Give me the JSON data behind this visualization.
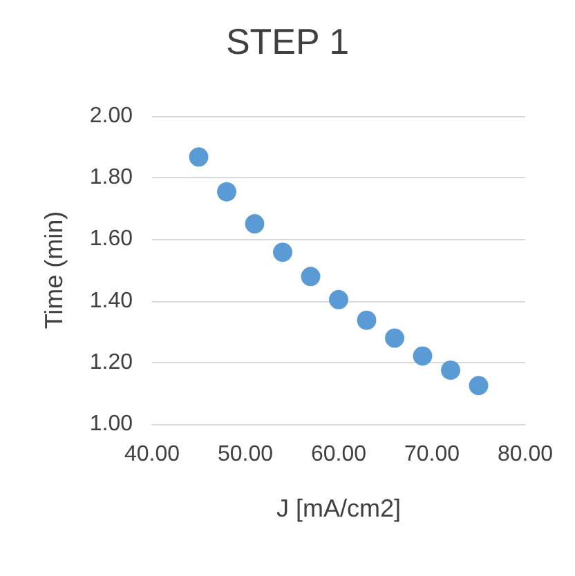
{
  "chart_data": {
    "type": "scatter",
    "title": "STEP 1",
    "xlabel": "J [mA/cm2]",
    "ylabel": "Time (min)",
    "x": [
      45,
      48,
      51,
      54,
      57,
      60,
      63,
      66,
      69,
      72,
      75
    ],
    "series": [
      {
        "color": "#5b9bd5",
        "values": [
          1.867,
          1.754,
          1.65,
          1.558,
          1.479,
          1.404,
          1.337,
          1.279,
          1.221,
          1.175,
          1.125
        ]
      }
    ],
    "xlim": [
      40,
      80
    ],
    "xticks": [
      {
        "value": 40,
        "label": "40.00"
      },
      {
        "value": 50,
        "label": "50.00"
      },
      {
        "value": 60,
        "label": "60.00"
      },
      {
        "value": 70,
        "label": "70.00"
      },
      {
        "value": 80,
        "label": "80.00"
      }
    ],
    "ylim": [
      1,
      2
    ],
    "yticks": [
      {
        "value": 1,
        "label": "1.00"
      },
      {
        "value": 1.2,
        "label": "1.20"
      },
      {
        "value": 1.4,
        "label": "1.40"
      },
      {
        "value": 1.6,
        "label": "1.60"
      },
      {
        "value": 1.8,
        "label": "1.80"
      },
      {
        "value": 2,
        "label": "2.00"
      }
    ],
    "grid": "y",
    "marker": "circle"
  }
}
